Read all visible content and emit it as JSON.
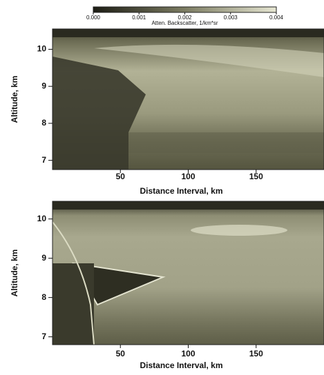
{
  "chart_data": [
    {
      "type": "heatmap",
      "xlabel": "Distance Interval, km",
      "ylabel": "Altitude, km",
      "xlim": [
        0,
        200
      ],
      "ylim": [
        6.75,
        10.55
      ],
      "xticks": [
        50,
        100,
        150
      ],
      "yticks": [
        7,
        8,
        9,
        10
      ],
      "colorbar": {
        "label": "Atten. Backscatter, 1/km*sr",
        "lim": [
          0,
          0.004
        ],
        "ticks": [
          {
            "value": 0,
            "label": "0.000"
          },
          0.001,
          0.002,
          0.003,
          0.004
        ]
      }
    },
    {
      "type": "heatmap",
      "xlabel": "Distance Interval, km",
      "ylabel": "Altitude, km",
      "xlim": [
        0,
        200
      ],
      "ylim": [
        6.8,
        10.45
      ],
      "xticks": [
        50,
        100,
        150
      ],
      "yticks": [
        7,
        8,
        9,
        10
      ]
    }
  ]
}
